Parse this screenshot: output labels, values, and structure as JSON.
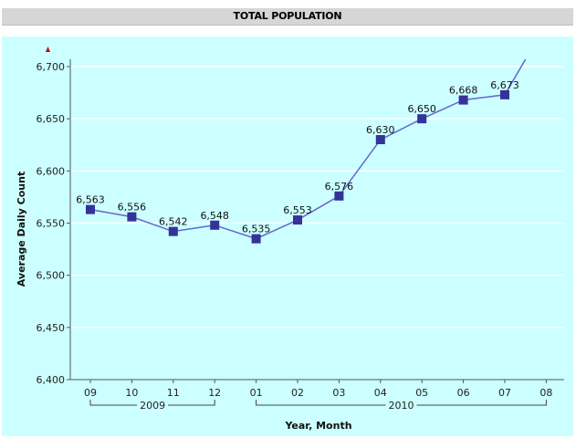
{
  "header": {
    "title": "TOTAL POPULATION"
  },
  "chart_data": {
    "type": "line",
    "title": "TOTAL POPULATION",
    "xlabel": "Year, Month",
    "ylabel": "Average Daily Count",
    "categories": [
      "09",
      "10",
      "11",
      "12",
      "01",
      "02",
      "03",
      "04",
      "05",
      "06",
      "07",
      "08"
    ],
    "groups": [
      {
        "label": "2009",
        "from": 0,
        "to": 3
      },
      {
        "label": "2010",
        "from": 4,
        "to": 11
      }
    ],
    "values": [
      6563,
      6556,
      6542,
      6548,
      6535,
      6553,
      6576,
      6630,
      6650,
      6668,
      6673,
      null
    ],
    "value_labels": [
      "6,563",
      "6,556",
      "6,542",
      "6,548",
      "6,535",
      "6,553",
      "6,576",
      "6,630",
      "6,650",
      "6,668",
      "6,673",
      ""
    ],
    "trend_end": {
      "x_index": 10.5,
      "value": 6707
    },
    "yticks": [
      6400,
      6450,
      6500,
      6550,
      6600,
      6650,
      6700
    ],
    "ytick_labels": [
      "6,400",
      "6,450",
      "6,500",
      "6,550",
      "6,600",
      "6,650",
      "6,700"
    ],
    "ylim": [
      6400,
      6700
    ],
    "grid": true,
    "colors": {
      "background": "#ccffff",
      "line": "#6666cc",
      "marker": "#333399",
      "grid": "#ffffff",
      "arrow": "#cc0000"
    }
  }
}
